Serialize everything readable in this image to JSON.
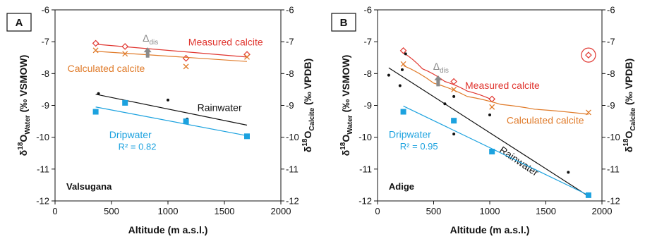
{
  "colors": {
    "measured": "#e0352f",
    "calculated": "#e07b2a",
    "rainwater": "#111111",
    "dripwater": "#1ca2df",
    "dis": "#8a8a8a",
    "axis": "#111111"
  },
  "chart_data": [
    {
      "type": "scatter",
      "panel_label": "A",
      "site": "Valsugana",
      "xlabel": "Altitude (m a.s.l.)",
      "ylabel_left": "δ18OWater (‰ VSMOW)",
      "ylabel_right": "δ18OCalcite (‰ VPDB)",
      "xlim": [
        0,
        2000
      ],
      "ylim": [
        -12,
        -6
      ],
      "xticks": [
        "0",
        "500",
        "1000",
        "1500",
        "2000"
      ],
      "yticks_left": [
        "-12",
        "-11",
        "-10",
        "-9",
        "-8",
        "-7",
        "-6"
      ],
      "yticks_right": [
        "-12",
        "-11",
        "-10",
        "-9",
        "-8",
        "-7",
        "-6"
      ],
      "dis_label": "Δdis",
      "dis_arrow": {
        "x": 820,
        "y_from": -7.5,
        "y_to": -7.22
      },
      "series": [
        {
          "key": "measured",
          "name": "Measured calcite",
          "marker": "diamond",
          "points": [
            [
              360,
              -7.05
            ],
            [
              620,
              -7.15
            ],
            [
              1160,
              -7.52
            ],
            [
              1700,
              -7.4
            ]
          ],
          "trend": {
            "kind": "linear",
            "x": [
              360,
              1700
            ],
            "y": [
              -7.08,
              -7.48
            ]
          },
          "label_pos": [
            1180,
            -7.12
          ]
        },
        {
          "key": "calculated",
          "name": "Calculated calcite",
          "marker": "x",
          "points": [
            [
              360,
              -7.27
            ],
            [
              620,
              -7.38
            ],
            [
              1160,
              -7.78
            ],
            [
              1700,
              -7.48
            ]
          ],
          "trend": {
            "kind": "linear",
            "x": [
              360,
              1700
            ],
            "y": [
              -7.3,
              -7.62
            ]
          },
          "label_pos": [
            110,
            -7.95
          ]
        },
        {
          "key": "rainwater",
          "name": "Rainwater",
          "marker": "dot",
          "points": [
            [
              385,
              -8.63
            ],
            [
              1000,
              -8.83
            ],
            [
              1170,
              -9.43
            ]
          ],
          "trend": {
            "kind": "linear",
            "x": [
              360,
              1700
            ],
            "y": [
              -8.65,
              -9.62
            ]
          },
          "label_pos": [
            1260,
            -9.18
          ]
        },
        {
          "key": "dripwater",
          "name": "Dripwater",
          "marker": "square",
          "r2": "R² = 0.82",
          "points": [
            [
              360,
              -9.2
            ],
            [
              620,
              -8.92
            ],
            [
              1160,
              -9.5
            ],
            [
              1700,
              -9.97
            ]
          ],
          "trend": {
            "kind": "linear",
            "x": [
              360,
              1700
            ],
            "y": [
              -9.05,
              -9.95
            ]
          },
          "label_pos": [
            480,
            -10.03
          ],
          "r2_pos": [
            560,
            -10.4
          ]
        }
      ]
    },
    {
      "type": "scatter",
      "panel_label": "B",
      "site": "Adige",
      "xlabel": "Altitude (m a.s.l.)",
      "ylabel_left": "δ18OWater (‰ VSMOW)",
      "ylabel_right": "δ18OCalcite (‰ VPDB)",
      "xlim": [
        0,
        2000
      ],
      "ylim": [
        -12,
        -6
      ],
      "xticks": [
        "0",
        "500",
        "1000",
        "1500",
        "2000"
      ],
      "yticks_left": [
        "-12",
        "-11",
        "-10",
        "-9",
        "-8",
        "-7",
        "-6"
      ],
      "yticks_right": [
        "-12",
        "-11",
        "-10",
        "-9",
        "-8",
        "-7",
        "-6"
      ],
      "dis_label": "Δdis",
      "dis_arrow": {
        "x": 540,
        "y_from": -8.4,
        "y_to": -8.1
      },
      "outlier": {
        "x": 1880,
        "y": -7.42
      },
      "series": [
        {
          "key": "measured",
          "name": "Measured calcite",
          "marker": "diamond",
          "points": [
            [
              230,
              -7.28
            ],
            [
              680,
              -8.25
            ],
            [
              1020,
              -8.8
            ]
          ],
          "trend": {
            "kind": "curve",
            "x": [
              230,
              400,
              600,
              800,
              1020
            ],
            "y": [
              -7.35,
              -7.85,
              -8.25,
              -8.55,
              -8.82
            ]
          },
          "label_pos": [
            780,
            -8.48
          ]
        },
        {
          "key": "calculated",
          "name": "Calculated calcite",
          "marker": "x",
          "points": [
            [
              230,
              -7.7
            ],
            [
              680,
              -8.5
            ],
            [
              1020,
              -9.05
            ],
            [
              1880,
              -9.22
            ]
          ],
          "trend": {
            "kind": "curve",
            "x": [
              230,
              500,
              800,
              1100,
              1400,
              1880
            ],
            "y": [
              -7.75,
              -8.3,
              -8.72,
              -8.97,
              -9.12,
              -9.28
            ]
          },
          "label_pos": [
            1150,
            -9.58
          ]
        },
        {
          "key": "rainwater",
          "name": "Rainwater",
          "marker": "dot",
          "points": [
            [
              100,
              -8.05
            ],
            [
              200,
              -8.38
            ],
            [
              220,
              -7.88
            ],
            [
              250,
              -7.38
            ],
            [
              600,
              -8.95
            ],
            [
              680,
              -8.72
            ],
            [
              680,
              -9.9
            ],
            [
              1000,
              -9.3
            ],
            [
              1700,
              -11.1
            ],
            [
              1880,
              -11.8
            ]
          ],
          "trend": {
            "kind": "linear",
            "x": [
              100,
              1880
            ],
            "y": [
              -7.82,
              -11.85
            ]
          },
          "label_pos": [
            1080,
            -10.45
          ],
          "label_rotate": 34
        },
        {
          "key": "dripwater",
          "name": "Dripwater",
          "marker": "square",
          "r2": "R² = 0.95",
          "points": [
            [
              230,
              -9.2
            ],
            [
              680,
              -9.48
            ],
            [
              1020,
              -10.45
            ],
            [
              1880,
              -11.82
            ]
          ],
          "trend": {
            "kind": "linear",
            "x": [
              230,
              1880
            ],
            "y": [
              -9.02,
              -11.82
            ]
          },
          "label_pos": [
            100,
            -10.02
          ],
          "r2_pos": [
            200,
            -10.38
          ]
        }
      ]
    }
  ]
}
